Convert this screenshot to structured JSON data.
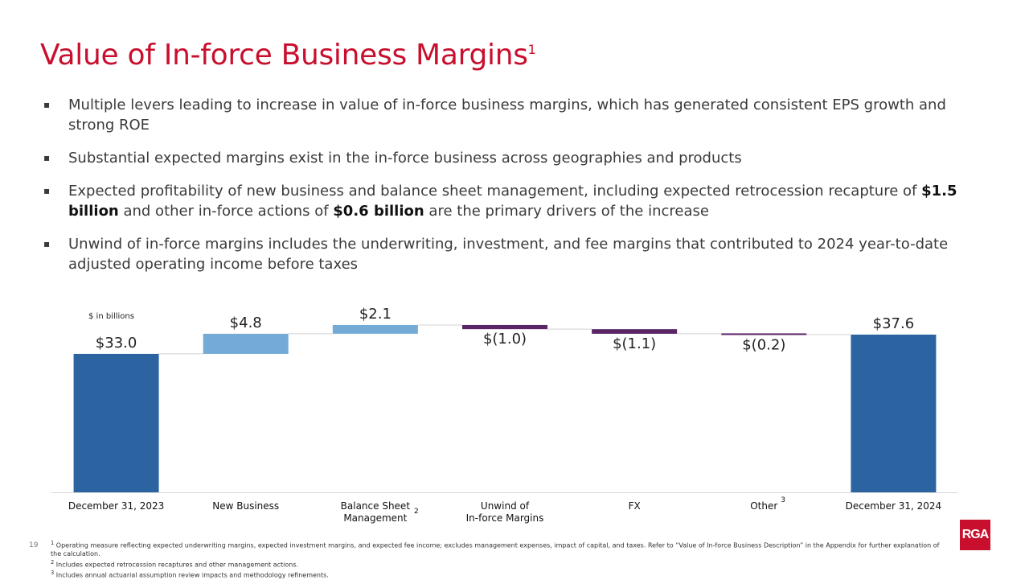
{
  "slide": {
    "title": "Value of In-force Business Margins",
    "title_sup": "1",
    "page_number": "19",
    "logo_text": "RGA"
  },
  "bullets": [
    {
      "parts": [
        {
          "text": "Multiple levers leading to increase in value of in-force business margins, which has generated consistent EPS growth and strong ROE",
          "bold": false
        }
      ]
    },
    {
      "parts": [
        {
          "text": "Substantial expected margins exist in the in-force business across geographies and products",
          "bold": false
        }
      ]
    },
    {
      "parts": [
        {
          "text": "Expected profitability of new business and balance sheet management, including expected retrocession recapture of ",
          "bold": false
        },
        {
          "text": "$1.5 billion",
          "bold": true
        },
        {
          "text": " and other in-force actions of ",
          "bold": false
        },
        {
          "text": "$0.6 billion",
          "bold": true
        },
        {
          "text": " are the primary drivers of the increase",
          "bold": false
        }
      ]
    },
    {
      "parts": [
        {
          "text": "Unwind of in-force margins includes the underwriting, investment, and fee margins that contributed to 2024 year-to-date adjusted operating income before taxes",
          "bold": false
        }
      ]
    }
  ],
  "bullet_marker": "▪",
  "chart_data": {
    "type": "bar",
    "subtype": "waterfall",
    "units_label": "$ in billions",
    "categories": [
      "December 31, 2023",
      "New Business",
      "Balance Sheet Management",
      "Unwind of In-force Margins",
      "FX",
      "Other",
      "December 31, 2024"
    ],
    "category_lines": [
      [
        "December 31, 2023"
      ],
      [
        "New Business"
      ],
      [
        "Balance Sheet",
        "Management"
      ],
      [
        "Unwind of",
        "In-force Margins"
      ],
      [
        "FX"
      ],
      [
        "Other"
      ],
      [
        "December 31, 2024"
      ]
    ],
    "category_footnotes": [
      "",
      "",
      "2",
      "",
      "",
      "3",
      ""
    ],
    "values": [
      33.0,
      4.8,
      2.1,
      -1.0,
      -1.1,
      -0.2,
      37.6
    ],
    "kinds": [
      "total",
      "delta",
      "delta",
      "delta",
      "delta",
      "delta",
      "total"
    ],
    "value_labels": [
      "$33.0",
      "$4.8",
      "$2.1",
      "$(1.0)",
      "$(1.1)",
      "$(0.2)",
      "$37.6"
    ],
    "ylim": [
      0,
      42
    ],
    "colors": {
      "total": "#2b64a0",
      "increase": "#74aad6",
      "decrease": "#5a2466",
      "connector": "#d0d0d0",
      "axis": "#d9d9d9"
    },
    "grid": false,
    "legend": "none"
  },
  "footnotes": [
    {
      "marker": "1",
      "text": "Operating measure reflecting expected underwriting margins, expected investment margins, and expected fee income; excludes management expenses, impact of capital, and taxes. Refer to “Value of In-force Business Description” in the Appendix for further explanation of the calculation."
    },
    {
      "marker": "2",
      "text": "Includes expected retrocession recaptures and other management actions."
    },
    {
      "marker": "3",
      "text": "Includes annual actuarial assumption review impacts and methodology refinements."
    }
  ]
}
